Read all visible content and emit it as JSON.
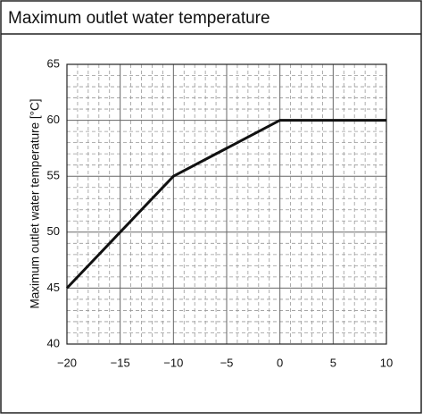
{
  "chart_data": {
    "type": "line",
    "title": "Maximum outlet water temperature",
    "ylabel": "Maximum outlet water temperature [°C]",
    "x": [
      -20,
      -10,
      0,
      10
    ],
    "series": [
      {
        "color": "#111111",
        "values": [
          45,
          55,
          60,
          60
        ]
      }
    ],
    "xlim": [
      -20,
      10
    ],
    "xticks": [
      {
        "value": -20,
        "label": "−20"
      },
      {
        "value": -15,
        "label": "−15"
      },
      {
        "value": -10,
        "label": "−10"
      },
      {
        "value": -5,
        "label": "−5"
      },
      0,
      5,
      10
    ],
    "ylim": [
      40,
      65
    ],
    "yticks": [
      40,
      45,
      50,
      55,
      60,
      65
    ],
    "grid": true
  }
}
